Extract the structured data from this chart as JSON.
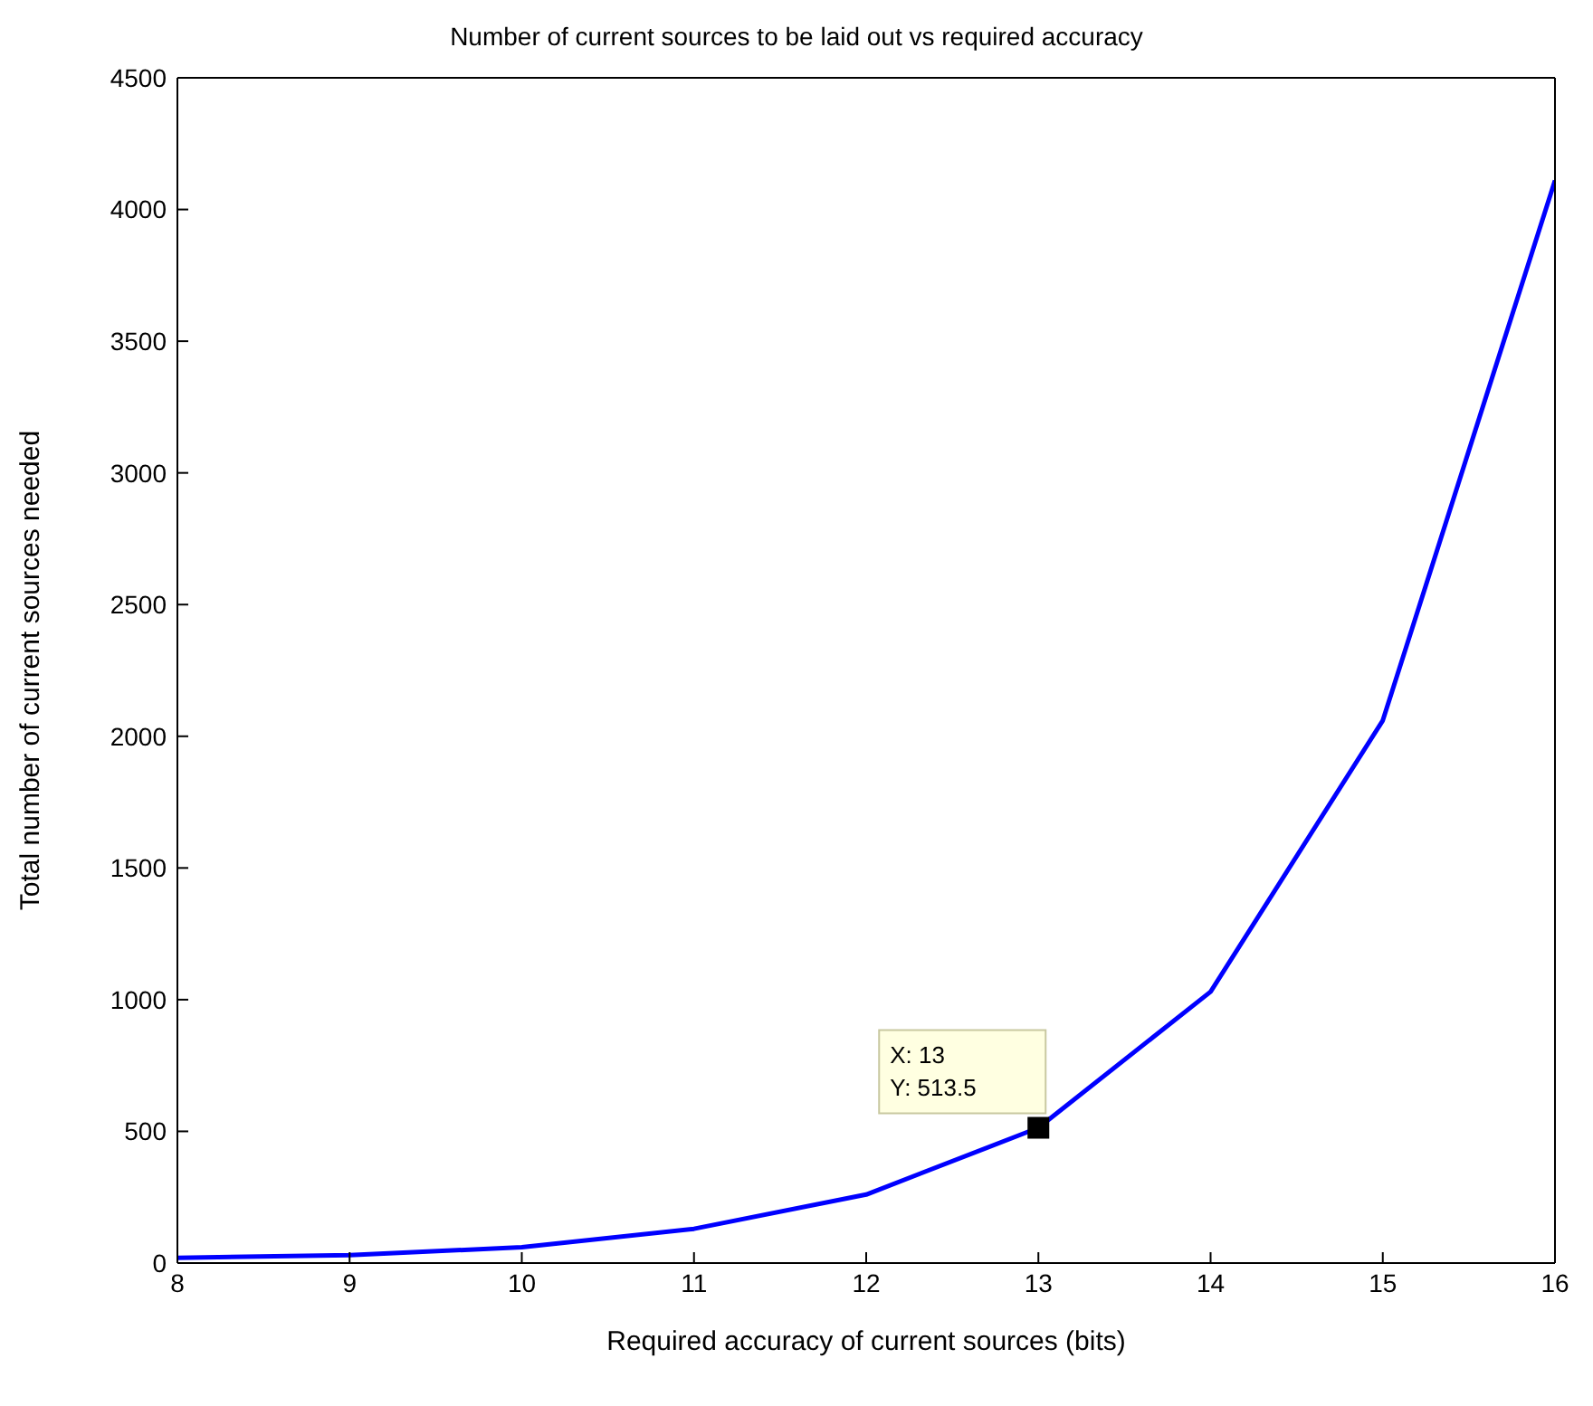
{
  "chart_data": {
    "type": "line",
    "title": "Number of current sources to be laid out vs required accuracy",
    "xlabel": "Required accuracy of current sources (bits)",
    "ylabel": "Total number of current sources needed",
    "x": [
      8,
      9,
      10,
      11,
      12,
      13,
      14,
      15,
      16
    ],
    "series": [
      {
        "color": "#0000ff",
        "values": [
          20,
          30,
          60,
          130,
          260,
          513.5,
          1030,
          2060,
          4110
        ]
      }
    ],
    "xlim": [
      8,
      16
    ],
    "xticks": [
      8,
      9,
      10,
      11,
      12,
      13,
      14,
      15,
      16
    ],
    "ylim": [
      0,
      4500
    ],
    "yticks": [
      0,
      500,
      1000,
      1500,
      2000,
      2500,
      3000,
      3500,
      4000,
      4500
    ],
    "grid": false,
    "legend": false,
    "marker": "none",
    "line_style": "solid",
    "annotations": [
      {
        "text": "X: 13\nY: 513.5",
        "x": 13,
        "y": 513.5
      }
    ]
  }
}
